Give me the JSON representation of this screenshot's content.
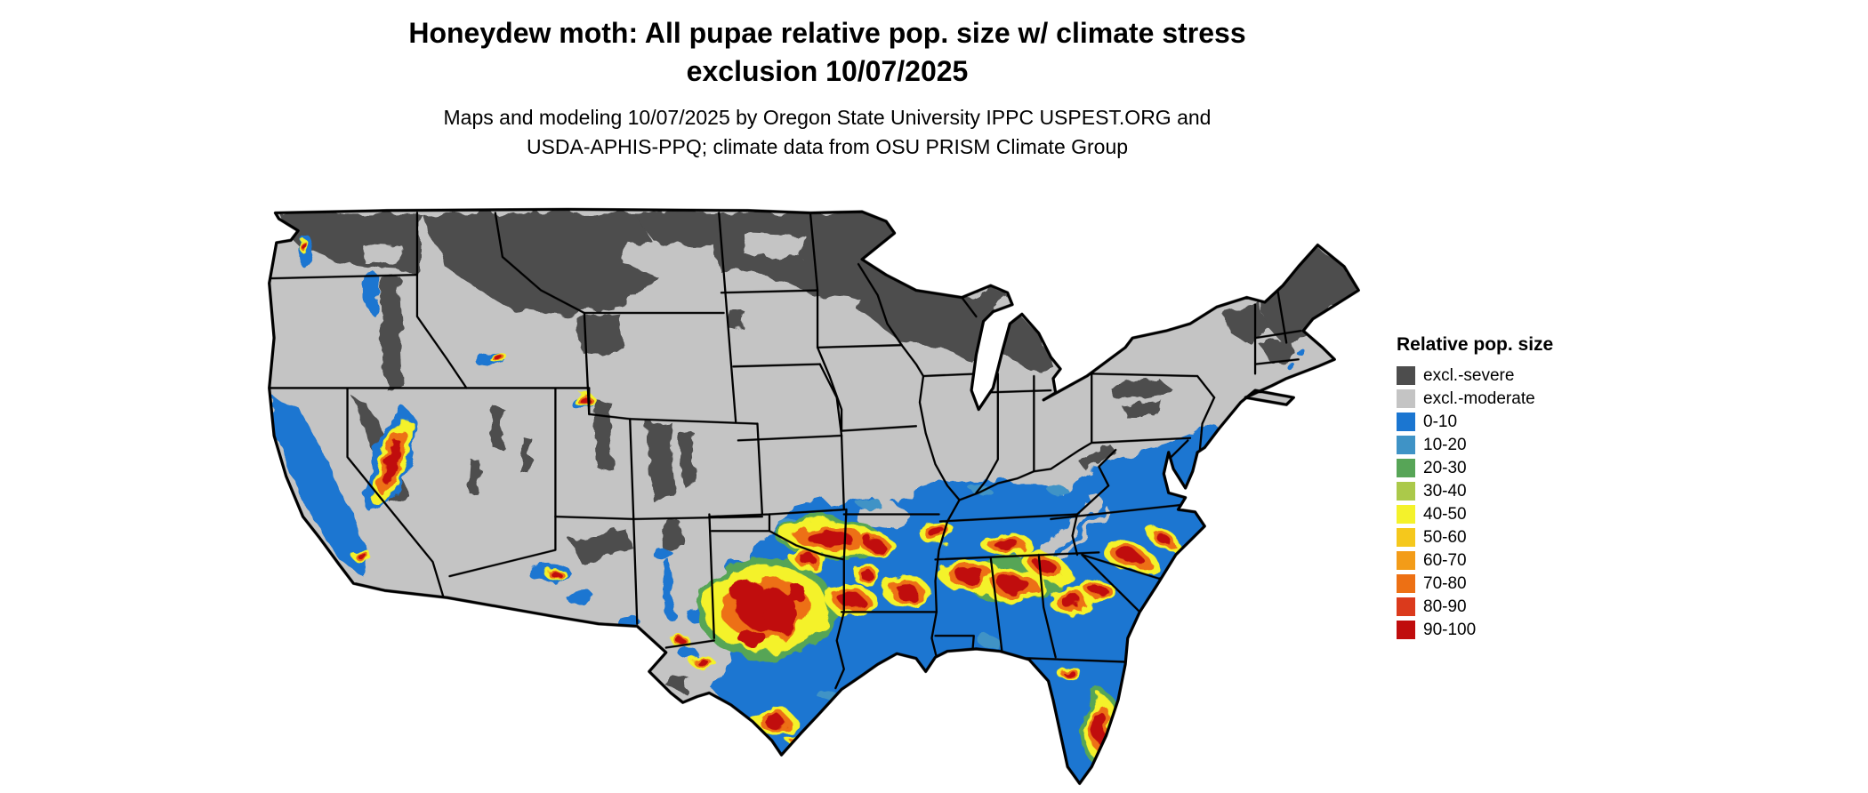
{
  "title": {
    "line1": "Honeydew moth: All pupae relative pop. size w/ climate stress",
    "line2": "exclusion 10/07/2025"
  },
  "subtitle": {
    "line1": "Maps and modeling 10/07/2025 by Oregon State University IPPC USPEST.ORG and",
    "line2": "USDA-APHIS-PPQ; climate data from OSU PRISM Climate Group"
  },
  "legend": {
    "title": "Relative pop. size",
    "items": [
      {
        "label": "excl.-severe",
        "color": "#4D4D4D"
      },
      {
        "label": "excl.-moderate",
        "color": "#C4C4C4"
      },
      {
        "label": "0-10",
        "color": "#1B76D1"
      },
      {
        "label": "10-20",
        "color": "#3F93C6"
      },
      {
        "label": "20-30",
        "color": "#57A557"
      },
      {
        "label": "30-40",
        "color": "#ABC94A"
      },
      {
        "label": "40-50",
        "color": "#F4F22B"
      },
      {
        "label": "50-60",
        "color": "#F5C81C"
      },
      {
        "label": "60-70",
        "color": "#F39C18"
      },
      {
        "label": "70-80",
        "color": "#ED7014"
      },
      {
        "label": "80-90",
        "color": "#DB3A1C"
      },
      {
        "label": "90-100",
        "color": "#C00D0D"
      }
    ]
  }
}
